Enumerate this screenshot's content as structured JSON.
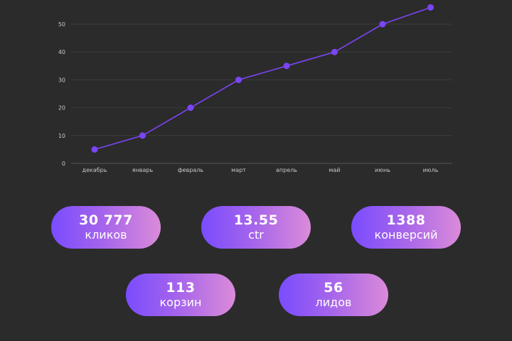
{
  "chart_data": {
    "type": "line",
    "title": "",
    "xlabel": "",
    "ylabel": "",
    "categories": [
      "декабрь",
      "январь",
      "февраль",
      "март",
      "апрель",
      "май",
      "июнь",
      "июль"
    ],
    "series": [
      {
        "name": "",
        "values": [
          5,
          10,
          20,
          30,
          35,
          40,
          50,
          56
        ],
        "color": "#7b45f5"
      }
    ],
    "yticks": [
      0,
      10,
      20,
      30,
      40,
      50
    ],
    "ylim": [
      0,
      56
    ],
    "grid": true,
    "legend": "none"
  },
  "stats": [
    {
      "value": "30 777",
      "label": "кликов"
    },
    {
      "value": "13.55",
      "label": "ctr"
    },
    {
      "value": "1388",
      "label": "конверсий"
    },
    {
      "value": "113",
      "label": "корзин"
    },
    {
      "value": "56",
      "label": "лидов"
    }
  ],
  "colors": {
    "background": "#2b2b2b",
    "line": "#7b45f5",
    "grid": "#3d3d3d",
    "axis_text": "#c8c8c8",
    "pill_start": "#7a4cfe",
    "pill_end": "#db8bd9"
  }
}
